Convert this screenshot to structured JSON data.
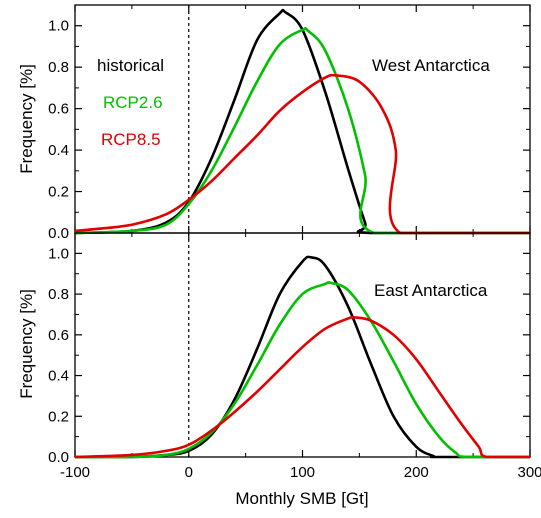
{
  "chart_data": [
    {
      "type": "line",
      "panel": "top",
      "region_label": "West Antarctica",
      "ylabel": "Frequency [%]",
      "xlim": [
        -100,
        300
      ],
      "ylim": [
        0,
        1.1
      ],
      "x_ticks": [
        "-100",
        "0",
        "100",
        "200",
        "300"
      ],
      "y_ticks": [
        "0.0",
        "0.2",
        "0.4",
        "0.6",
        "0.8",
        "1.0"
      ],
      "vline_at_x": 0,
      "legend_position": "upper-left",
      "series": [
        {
          "name": "historical",
          "color": "#000000",
          "x": [
            -100,
            -50,
            -20,
            0,
            20,
            40,
            60,
            80,
            85,
            100,
            120,
            140,
            155,
            160,
            300
          ],
          "y": [
            0.0,
            0.01,
            0.05,
            0.15,
            0.36,
            0.64,
            0.93,
            1.06,
            1.065,
            0.98,
            0.68,
            0.31,
            0.05,
            0.0,
            0.0
          ]
        },
        {
          "name": "RCP2.6",
          "color": "#00c000",
          "x": [
            -100,
            -50,
            -20,
            0,
            20,
            40,
            60,
            80,
            100,
            105,
            120,
            140,
            155,
            163,
            300
          ],
          "y": [
            0.0,
            0.01,
            0.04,
            0.14,
            0.3,
            0.51,
            0.73,
            0.91,
            0.98,
            0.975,
            0.88,
            0.6,
            0.28,
            0.0,
            0.0
          ]
        },
        {
          "name": "RCP8.5",
          "color": "#e00000",
          "x": [
            -100,
            -80,
            -50,
            -20,
            0,
            20,
            40,
            60,
            80,
            100,
            120,
            130,
            150,
            170,
            182,
            186,
            300
          ],
          "y": [
            0.01,
            0.02,
            0.04,
            0.09,
            0.16,
            0.25,
            0.36,
            0.47,
            0.59,
            0.68,
            0.75,
            0.76,
            0.73,
            0.6,
            0.4,
            0.0,
            0.0
          ]
        }
      ]
    },
    {
      "type": "line",
      "panel": "bottom",
      "region_label": "East Antarctica",
      "xlabel": "Monthly SMB [Gt]",
      "ylabel": "Frequency [%]",
      "xlim": [
        -100,
        300
      ],
      "ylim": [
        0,
        1.1
      ],
      "x_ticks": [
        "-100",
        "0",
        "100",
        "200",
        "300"
      ],
      "y_ticks": [
        "0.0",
        "0.2",
        "0.4",
        "0.6",
        "0.8",
        "1.0"
      ],
      "vline_at_x": 0,
      "series": [
        {
          "name": "historical",
          "color": "#000000",
          "x": [
            -100,
            -50,
            -20,
            0,
            20,
            40,
            60,
            80,
            100,
            108,
            120,
            140,
            160,
            180,
            200,
            215,
            220,
            300
          ],
          "y": [
            0.0,
            0.0,
            0.01,
            0.03,
            0.11,
            0.28,
            0.53,
            0.8,
            0.96,
            0.98,
            0.94,
            0.74,
            0.46,
            0.2,
            0.05,
            0.005,
            0.0,
            0.0
          ]
        },
        {
          "name": "RCP2.6",
          "color": "#00c000",
          "x": [
            -100,
            -50,
            -20,
            0,
            20,
            40,
            60,
            80,
            100,
            120,
            125,
            140,
            160,
            180,
            200,
            220,
            235,
            245,
            300
          ],
          "y": [
            0.0,
            0.0,
            0.01,
            0.04,
            0.12,
            0.26,
            0.45,
            0.65,
            0.8,
            0.85,
            0.855,
            0.82,
            0.67,
            0.47,
            0.26,
            0.1,
            0.02,
            0.0,
            0.0
          ]
        },
        {
          "name": "RCP8.5",
          "color": "#e00000",
          "x": [
            -100,
            -50,
            -20,
            0,
            20,
            40,
            60,
            80,
            100,
            120,
            140,
            147,
            160,
            180,
            200,
            220,
            240,
            255,
            262,
            300
          ],
          "y": [
            0.0,
            0.01,
            0.03,
            0.06,
            0.13,
            0.22,
            0.32,
            0.43,
            0.54,
            0.63,
            0.68,
            0.685,
            0.67,
            0.6,
            0.48,
            0.32,
            0.16,
            0.05,
            0.0,
            0.0
          ]
        }
      ]
    }
  ]
}
